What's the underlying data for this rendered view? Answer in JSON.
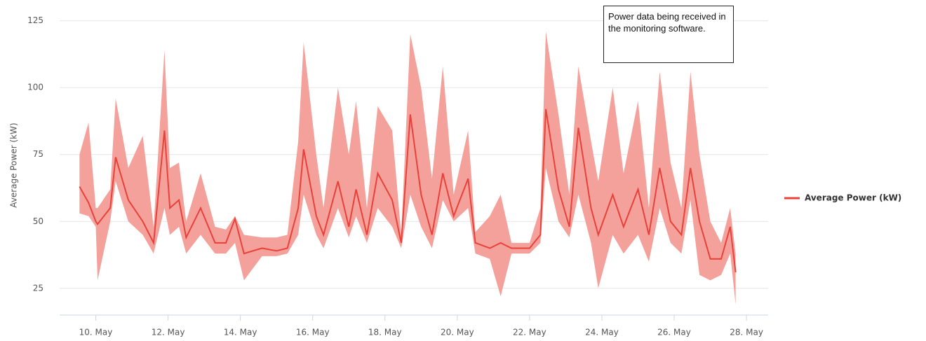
{
  "chart_data": {
    "type": "range-line",
    "y_label": "Average Power (kW)",
    "annotation": "Power data being received in the monitoring software.",
    "xlim": [
      9,
      28.6
    ],
    "xticks": [
      {
        "value": 10,
        "label": "10. May"
      },
      {
        "value": 12,
        "label": "12. May"
      },
      {
        "value": 14,
        "label": "14. May"
      },
      {
        "value": 16,
        "label": "16. May"
      },
      {
        "value": 18,
        "label": "18. May"
      },
      {
        "value": 20,
        "label": "20. May"
      },
      {
        "value": 22,
        "label": "22. May"
      },
      {
        "value": 24,
        "label": "24. May"
      },
      {
        "value": 26,
        "label": "26. May"
      },
      {
        "value": 28,
        "label": "28. May"
      }
    ],
    "ylim": [
      15,
      127
    ],
    "yticks": [
      25,
      50,
      75,
      100,
      125
    ],
    "grid": true,
    "legend": "right",
    "x": [
      9.55,
      9.8,
      10.0,
      10.05,
      10.4,
      10.55,
      10.9,
      11.3,
      11.6,
      11.9,
      12.05,
      12.3,
      12.5,
      12.9,
      13.3,
      13.6,
      13.85,
      14.1,
      14.6,
      15.0,
      15.3,
      15.6,
      15.75,
      16.1,
      16.3,
      16.7,
      17.0,
      17.2,
      17.5,
      17.8,
      18.2,
      18.45,
      18.7,
      19.0,
      19.3,
      19.6,
      19.9,
      20.3,
      20.5,
      20.9,
      21.2,
      21.5,
      22.0,
      22.3,
      22.45,
      22.8,
      23.1,
      23.35,
      23.7,
      23.9,
      24.3,
      24.6,
      25.0,
      25.3,
      25.6,
      25.9,
      26.2,
      26.45,
      26.7,
      27.0,
      27.3,
      27.55,
      27.7
    ],
    "series": [
      {
        "name": "Average Power (kW)",
        "color": "#e8413a",
        "band_color": "#f5a19b",
        "values": [
          63,
          57,
          50,
          49,
          55,
          74,
          58,
          50,
          42,
          84,
          55,
          58,
          44,
          55,
          42,
          42,
          51,
          38,
          40,
          39,
          40,
          55,
          77,
          52,
          45,
          65,
          48,
          62,
          45,
          68,
          58,
          42,
          90,
          60,
          45,
          68,
          52,
          66,
          42,
          40,
          42,
          40,
          40,
          45,
          92,
          62,
          48,
          85,
          55,
          45,
          60,
          48,
          62,
          45,
          70,
          50,
          45,
          70,
          50,
          36,
          36,
          48,
          31
        ],
        "low": [
          53,
          52,
          48,
          28,
          50,
          65,
          50,
          45,
          38,
          55,
          45,
          48,
          38,
          45,
          38,
          38,
          42,
          28,
          37,
          37,
          38,
          45,
          60,
          45,
          40,
          55,
          44,
          52,
          42,
          55,
          48,
          40,
          60,
          48,
          40,
          58,
          50,
          55,
          38,
          36,
          22,
          38,
          38,
          42,
          70,
          50,
          44,
          60,
          42,
          25,
          45,
          38,
          45,
          35,
          55,
          42,
          38,
          58,
          30,
          28,
          30,
          38,
          19
        ],
        "high": [
          75,
          87,
          55,
          55,
          62,
          96,
          70,
          82,
          48,
          114,
          70,
          72,
          50,
          68,
          48,
          47,
          52,
          45,
          44,
          44,
          45,
          80,
          117,
          75,
          55,
          100,
          75,
          95,
          55,
          93,
          84,
          45,
          120,
          100,
          66,
          108,
          60,
          84,
          46,
          52,
          60,
          42,
          42,
          55,
          121,
          90,
          60,
          108,
          80,
          65,
          100,
          68,
          95,
          55,
          106,
          72,
          55,
          106,
          75,
          50,
          42,
          55,
          38
        ]
      }
    ]
  }
}
